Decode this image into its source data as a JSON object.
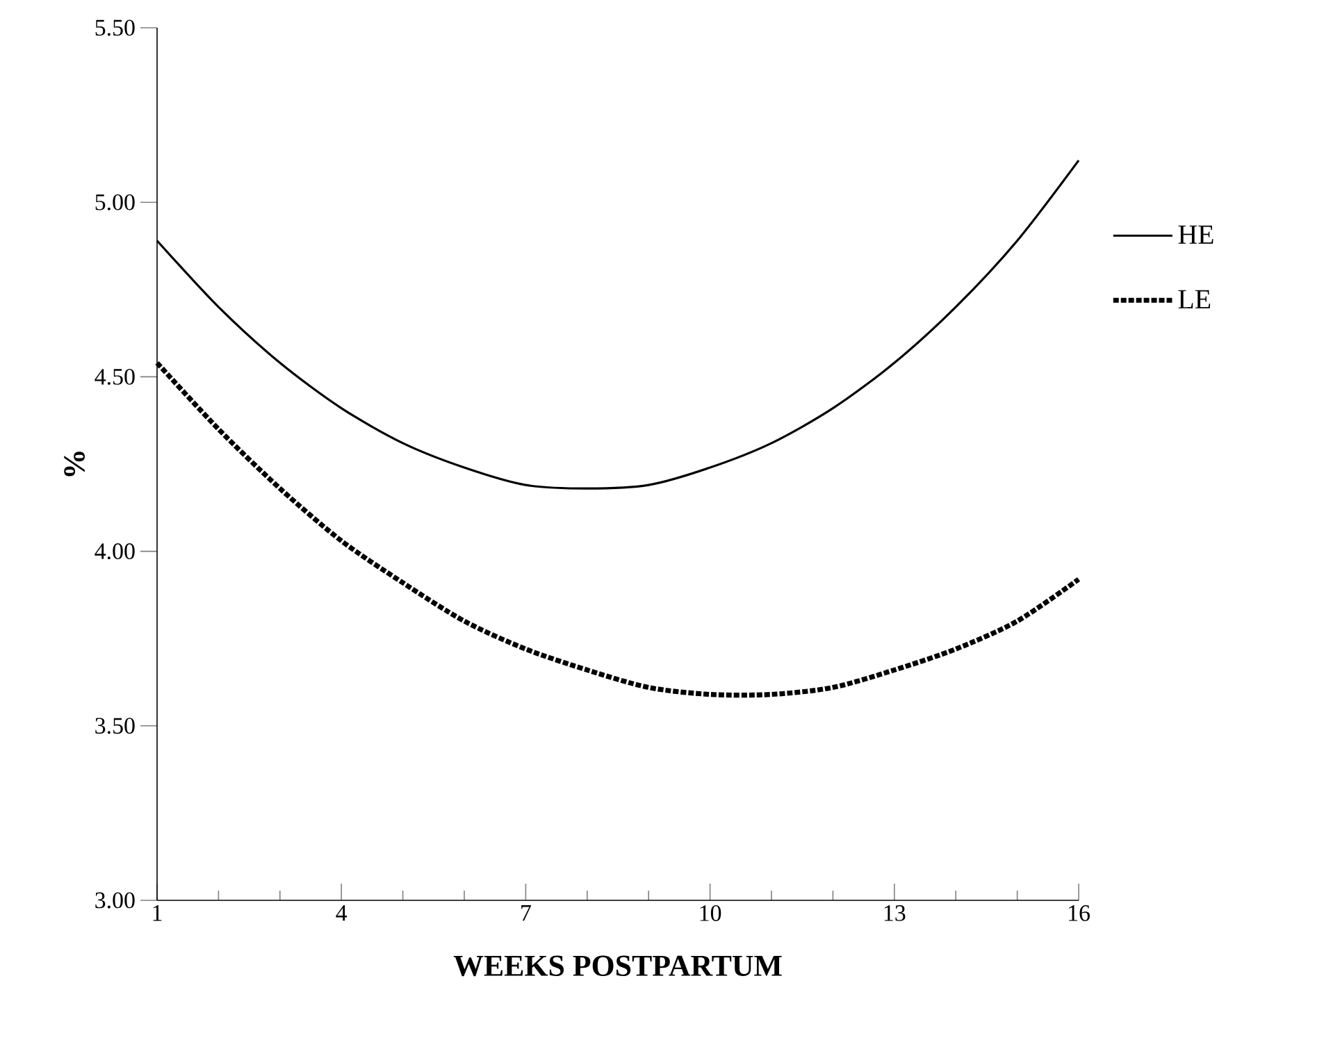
{
  "chart_data": {
    "type": "line",
    "xlabel": "WEEKS POSTPARTUM",
    "ylabel": "%",
    "x": [
      1,
      2,
      3,
      4,
      5,
      6,
      7,
      8,
      9,
      10,
      11,
      12,
      13,
      14,
      15,
      16
    ],
    "series": [
      {
        "name": "HE",
        "color": "#000000",
        "line_style": "solid",
        "values": [
          4.89,
          4.7,
          4.54,
          4.41,
          4.31,
          4.24,
          4.19,
          4.18,
          4.19,
          4.24,
          4.31,
          4.41,
          4.54,
          4.7,
          4.89,
          5.12
        ]
      },
      {
        "name": "LE",
        "color": "#000000",
        "line_style": "dashed",
        "values": [
          4.54,
          4.35,
          4.18,
          4.03,
          3.91,
          3.8,
          3.72,
          3.66,
          3.61,
          3.59,
          3.59,
          3.61,
          3.66,
          3.72,
          3.8,
          3.92
        ]
      }
    ],
    "xlim": [
      1,
      16
    ],
    "ylim": [
      3.0,
      5.5
    ],
    "xticks": [
      1,
      4,
      7,
      10,
      13,
      16
    ],
    "yticks": [
      {
        "value": 3.0,
        "label": "3.00"
      },
      {
        "value": 3.5,
        "label": "3.50"
      },
      {
        "value": 4.0,
        "label": "4.00"
      },
      {
        "value": 4.5,
        "label": "4.50"
      },
      {
        "value": 5.0,
        "label": "5.00"
      },
      {
        "value": 5.5,
        "label": "5.50"
      }
    ],
    "grid": false,
    "legend": "right",
    "marker": "none"
  }
}
